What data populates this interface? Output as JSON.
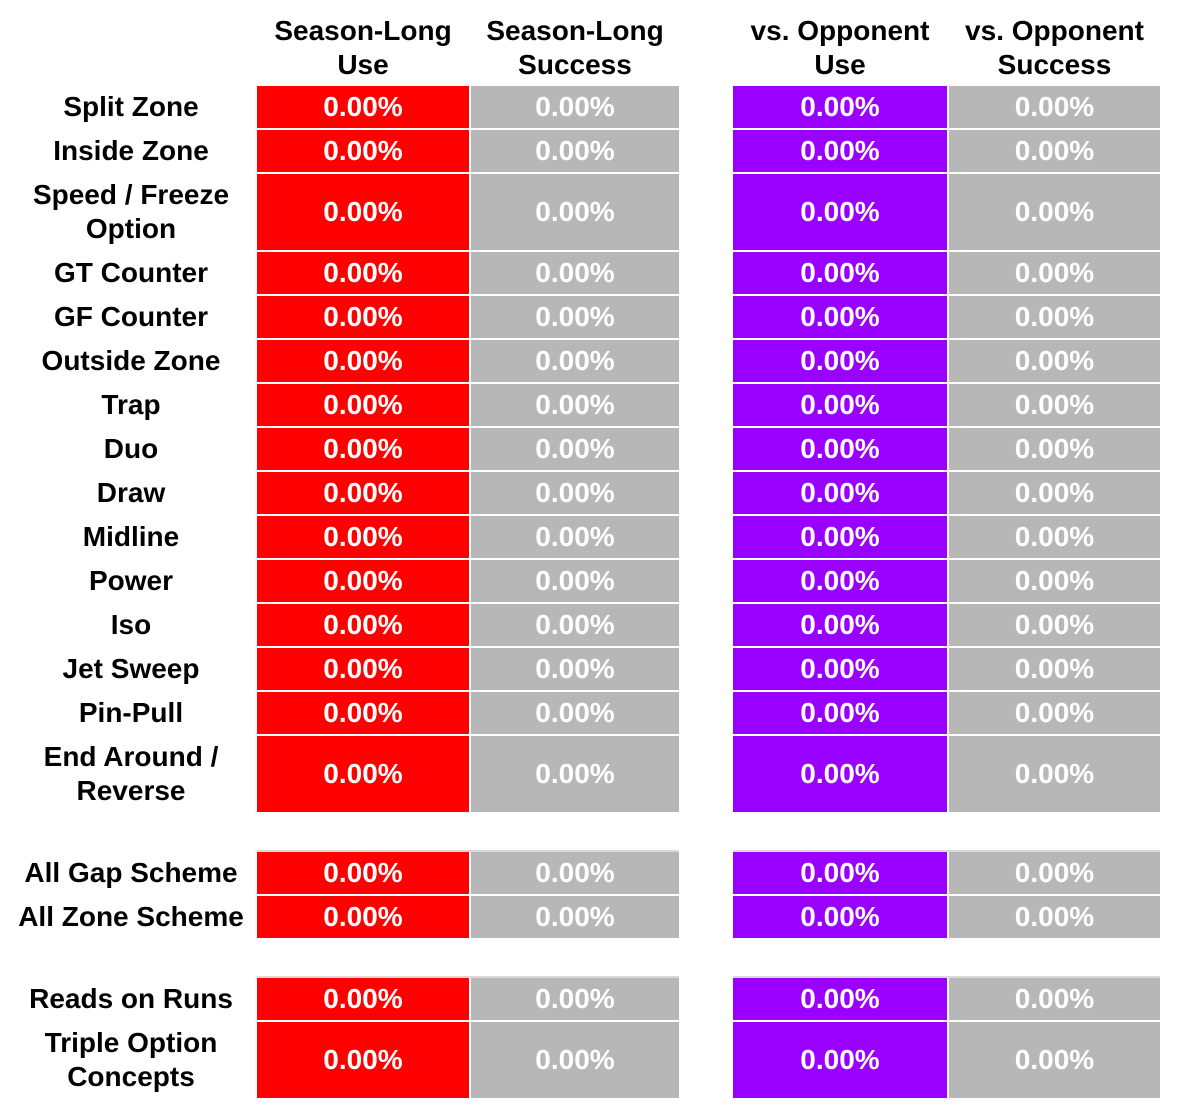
{
  "colors": {
    "use": "#ff0000",
    "success": "#b7b7b7",
    "opponent_use": "#9900ff",
    "value_text": "#ffffff"
  },
  "chart_data": {
    "type": "table",
    "columns": [
      "Season-Long Use",
      "Season-Long Success",
      "vs. Opponent Use",
      "vs. Opponent Success"
    ],
    "groups": [
      {
        "rows": [
          {
            "label": "Split Zone",
            "values": [
              "0.00%",
              "0.00%",
              "0.00%",
              "0.00%"
            ]
          },
          {
            "label": "Inside Zone",
            "values": [
              "0.00%",
              "0.00%",
              "0.00%",
              "0.00%"
            ]
          },
          {
            "label": "Speed / Freeze Option",
            "values": [
              "0.00%",
              "0.00%",
              "0.00%",
              "0.00%"
            ]
          },
          {
            "label": "GT Counter",
            "values": [
              "0.00%",
              "0.00%",
              "0.00%",
              "0.00%"
            ]
          },
          {
            "label": "GF Counter",
            "values": [
              "0.00%",
              "0.00%",
              "0.00%",
              "0.00%"
            ]
          },
          {
            "label": "Outside Zone",
            "values": [
              "0.00%",
              "0.00%",
              "0.00%",
              "0.00%"
            ]
          },
          {
            "label": "Trap",
            "values": [
              "0.00%",
              "0.00%",
              "0.00%",
              "0.00%"
            ]
          },
          {
            "label": "Duo",
            "values": [
              "0.00%",
              "0.00%",
              "0.00%",
              "0.00%"
            ]
          },
          {
            "label": "Draw",
            "values": [
              "0.00%",
              "0.00%",
              "0.00%",
              "0.00%"
            ]
          },
          {
            "label": "Midline",
            "values": [
              "0.00%",
              "0.00%",
              "0.00%",
              "0.00%"
            ]
          },
          {
            "label": "Power",
            "values": [
              "0.00%",
              "0.00%",
              "0.00%",
              "0.00%"
            ]
          },
          {
            "label": "Iso",
            "values": [
              "0.00%",
              "0.00%",
              "0.00%",
              "0.00%"
            ]
          },
          {
            "label": "Jet Sweep",
            "values": [
              "0.00%",
              "0.00%",
              "0.00%",
              "0.00%"
            ]
          },
          {
            "label": "Pin-Pull",
            "values": [
              "0.00%",
              "0.00%",
              "0.00%",
              "0.00%"
            ]
          },
          {
            "label": "End Around / Reverse",
            "values": [
              "0.00%",
              "0.00%",
              "0.00%",
              "0.00%"
            ]
          }
        ]
      },
      {
        "rows": [
          {
            "label": "All Gap Scheme",
            "values": [
              "0.00%",
              "0.00%",
              "0.00%",
              "0.00%"
            ]
          },
          {
            "label": "All Zone Scheme",
            "values": [
              "0.00%",
              "0.00%",
              "0.00%",
              "0.00%"
            ]
          }
        ]
      },
      {
        "rows": [
          {
            "label": "Reads on Runs",
            "values": [
              "0.00%",
              "0.00%",
              "0.00%",
              "0.00%"
            ]
          },
          {
            "label": "Triple Option Concepts",
            "values": [
              "0.00%",
              "0.00%",
              "0.00%",
              "0.00%"
            ]
          }
        ]
      }
    ]
  }
}
